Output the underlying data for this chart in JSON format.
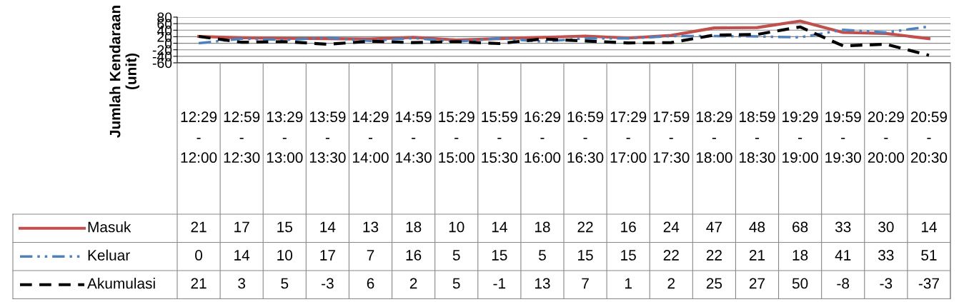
{
  "chart_data": {
    "type": "line",
    "ylabel": "Jumlah Kendaraan (unit)",
    "categories": [
      "12:29 - 12:00",
      "12:59 - 12:30",
      "13:29 - 13:00",
      "13:59 - 13:30",
      "14:29 - 14:00",
      "14:59 - 14:30",
      "15:29 - 15:00",
      "15:59 - 15:30",
      "16:29 - 16:00",
      "16:59 - 16:30",
      "17:29 - 17:00",
      "17:59 - 17:30",
      "18:29 - 18:00",
      "18:59 - 18:30",
      "19:29 - 19:00",
      "19:59 - 19:30",
      "20:29 - 20:00",
      "20:59 - 20:30"
    ],
    "series": [
      {
        "name": "Masuk",
        "color": "#c0504d",
        "line_style": "solid",
        "values": [
          21,
          17,
          15,
          14,
          13,
          18,
          10,
          14,
          18,
          22,
          16,
          24,
          47,
          48,
          68,
          33,
          30,
          14
        ]
      },
      {
        "name": "Keluar",
        "color": "#4f81bd",
        "line_style": "dashdot",
        "values": [
          0,
          14,
          10,
          17,
          7,
          16,
          5,
          15,
          5,
          15,
          15,
          22,
          22,
          21,
          18,
          41,
          33,
          51
        ]
      },
      {
        "name": "Akumulasi",
        "color": "#000000",
        "line_style": "dashed",
        "values": [
          21,
          3,
          5,
          -3,
          6,
          2,
          5,
          -1,
          13,
          7,
          1,
          2,
          25,
          27,
          50,
          -8,
          -3,
          -37
        ]
      }
    ],
    "ylim": [
      -60,
      80
    ],
    "yticks": [
      -60,
      -40,
      -20,
      0,
      20,
      40,
      60,
      80
    ],
    "grid": "y",
    "legend": "bottom",
    "data_labels": true
  }
}
